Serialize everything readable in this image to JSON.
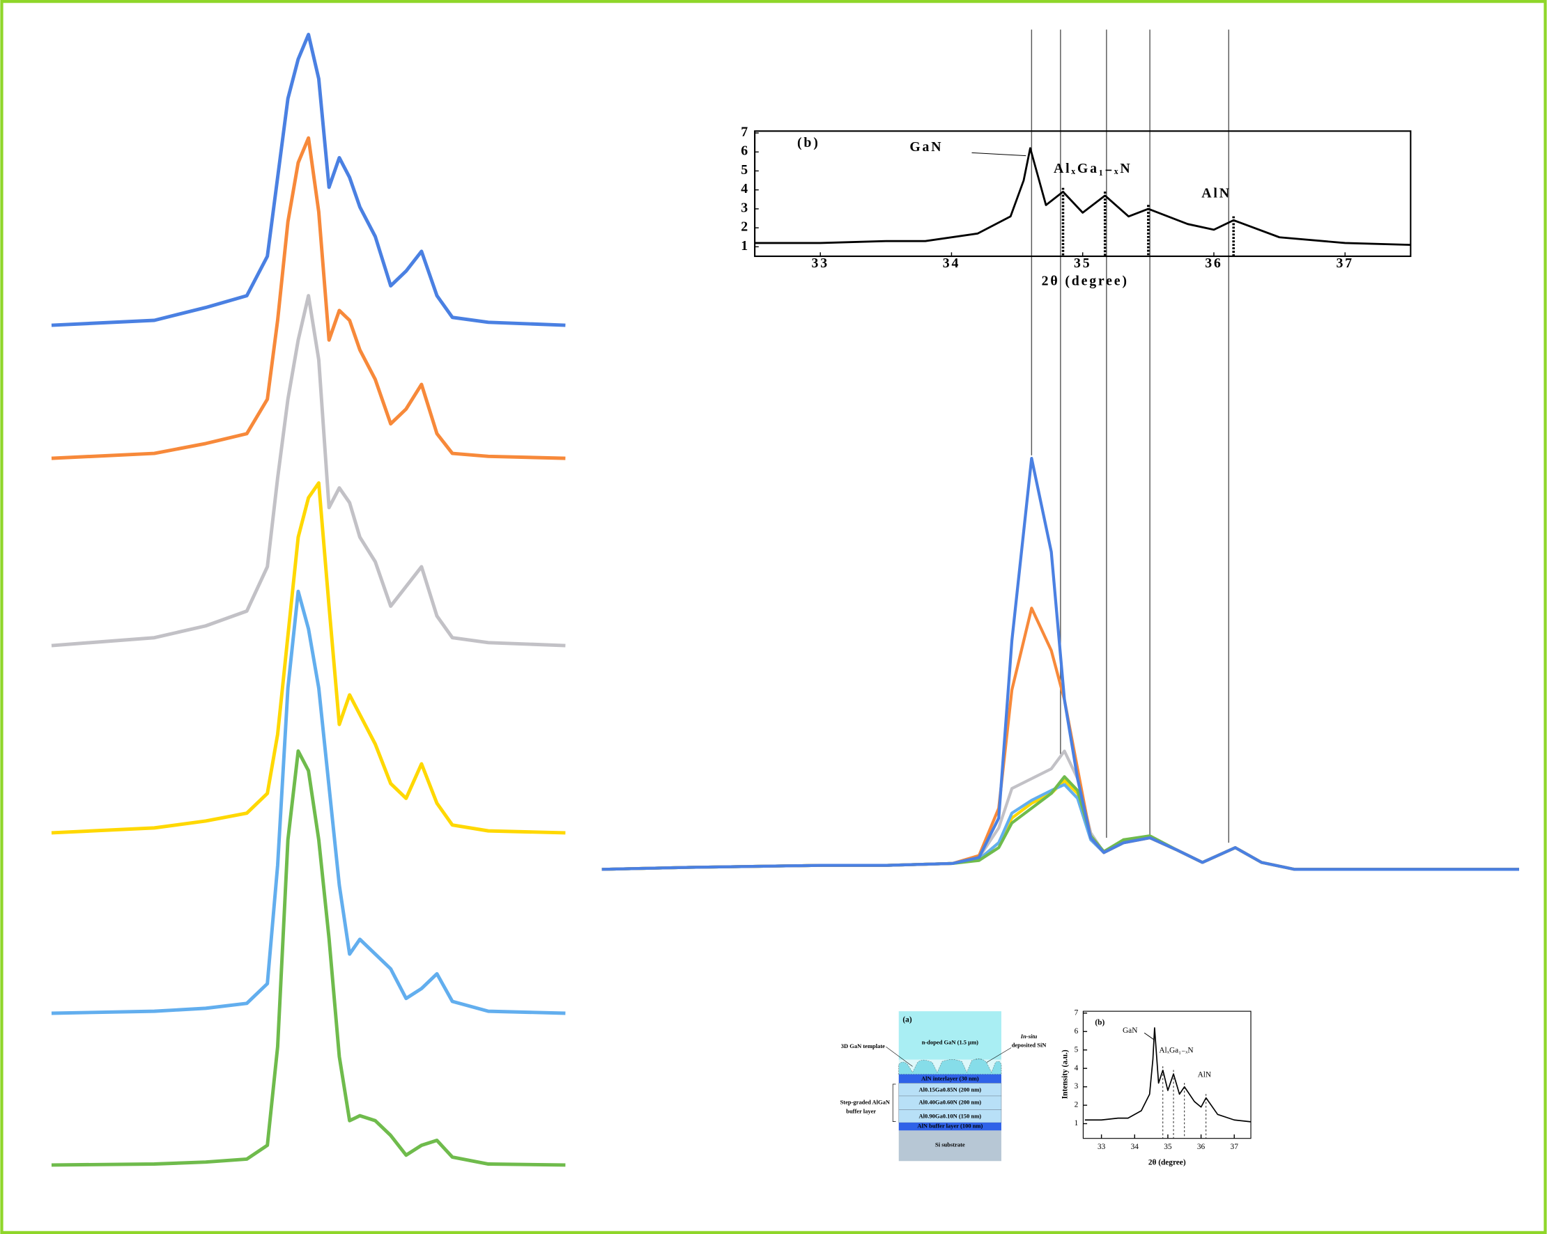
{
  "chart_data": [
    {
      "type": "line",
      "x": [
        0,
        20,
        30,
        38,
        42,
        44,
        46,
        48,
        50,
        52,
        54,
        56,
        58,
        60,
        63,
        66,
        69,
        72,
        75,
        78,
        85,
        100
      ],
      "xlim": [
        0,
        100
      ],
      "ylim": [
        0,
        450
      ],
      "series": [
        {
          "color": "#4a80e2",
          "values": [
            0,
            5,
            18,
            30,
            70,
            150,
            230,
            270,
            295,
            250,
            140,
            170,
            150,
            120,
            90,
            40,
            55,
            75,
            30,
            8,
            3,
            0
          ]
        },
        {
          "color": "#f7893a",
          "values": [
            0,
            5,
            15,
            25,
            60,
            140,
            240,
            300,
            325,
            250,
            120,
            150,
            140,
            110,
            80,
            35,
            50,
            75,
            25,
            5,
            2,
            0
          ]
        },
        {
          "color": "#c2c1c6",
          "values": [
            0,
            8,
            20,
            35,
            80,
            170,
            250,
            310,
            355,
            290,
            140,
            160,
            145,
            110,
            85,
            40,
            60,
            80,
            30,
            8,
            3,
            0
          ]
        },
        {
          "color": "#ffd800",
          "values": [
            0,
            5,
            12,
            20,
            40,
            100,
            200,
            300,
            340,
            355,
            230,
            110,
            140,
            120,
            90,
            50,
            35,
            70,
            30,
            8,
            2,
            0
          ]
        },
        {
          "color": "#62aeee",
          "values": [
            0,
            2,
            5,
            10,
            30,
            150,
            330,
            428,
            390,
            330,
            230,
            130,
            60,
            75,
            60,
            45,
            15,
            25,
            40,
            12,
            2,
            0
          ]
        },
        {
          "color": "#6fbb4c",
          "values": [
            0,
            1,
            3,
            6,
            20,
            120,
            330,
            420,
            400,
            330,
            230,
            110,
            45,
            50,
            45,
            30,
            10,
            20,
            25,
            8,
            1,
            0
          ]
        }
      ]
    },
    {
      "type": "line",
      "x": [
        31.33,
        32,
        33,
        33.5,
        34,
        34.2,
        34.35,
        34.45,
        34.6,
        34.75,
        34.85,
        34.95,
        35.05,
        35.15,
        35.3,
        35.5,
        35.7,
        35.9,
        36.15,
        36.35,
        36.6,
        37,
        38.31
      ],
      "xlim": [
        31.33,
        38.31
      ],
      "ylim": [
        0,
        450
      ],
      "reference_lines": [
        34.6,
        34.82,
        35.17,
        35.5,
        36.1
      ],
      "series": [
        {
          "color": "#c2c1c6",
          "values": [
            18,
            20,
            22,
            22,
            24,
            30,
            60,
            100,
            110,
            120,
            138,
            110,
            55,
            35,
            45,
            50,
            38,
            25,
            40,
            25,
            18,
            18,
            18
          ]
        },
        {
          "color": "#ffd800",
          "values": [
            18,
            20,
            22,
            22,
            24,
            28,
            45,
            70,
            85,
            95,
            108,
            95,
            50,
            35,
            48,
            50,
            38,
            25,
            40,
            25,
            18,
            18,
            18
          ]
        },
        {
          "color": "#62aeee",
          "values": [
            18,
            20,
            22,
            22,
            24,
            28,
            45,
            75,
            88,
            98,
            104,
            90,
            48,
            35,
            45,
            50,
            38,
            25,
            40,
            25,
            18,
            18,
            18
          ]
        },
        {
          "color": "#6fbb4c",
          "values": [
            18,
            20,
            22,
            22,
            24,
            27,
            40,
            65,
            80,
            95,
            112,
            98,
            52,
            36,
            48,
            52,
            38,
            25,
            40,
            25,
            18,
            18,
            18
          ]
        },
        {
          "color": "#f7893a",
          "values": [
            18,
            20,
            22,
            22,
            24,
            32,
            80,
            200,
            283,
            240,
            190,
            120,
            50,
            35,
            45,
            50,
            38,
            25,
            40,
            25,
            18,
            18,
            18
          ]
        },
        {
          "color": "#4a80e2",
          "values": [
            18,
            20,
            22,
            22,
            24,
            30,
            70,
            250,
            435,
            340,
            190,
            110,
            50,
            35,
            45,
            50,
            38,
            25,
            40,
            25,
            18,
            18,
            18
          ]
        }
      ]
    },
    {
      "type": "line",
      "panel_label": "(b)",
      "x": [
        32.5,
        33,
        33.5,
        33.8,
        34.2,
        34.45,
        34.55,
        34.6,
        34.72,
        34.85,
        35,
        35.17,
        35.35,
        35.5,
        35.8,
        36,
        36.15,
        36.5,
        37,
        37.5
      ],
      "values": [
        1.2,
        1.2,
        1.3,
        1.3,
        1.7,
        2.6,
        4.5,
        6.2,
        3.2,
        3.9,
        2.8,
        3.7,
        2.6,
        3.0,
        2.2,
        1.9,
        2.4,
        1.5,
        1.2,
        1.1
      ],
      "color": "#000000",
      "xlim": [
        32.5,
        37.5
      ],
      "ylim": [
        0.5,
        7.1
      ],
      "xticks": [
        33,
        34,
        35,
        36,
        37
      ],
      "yticks": [
        1,
        2,
        3,
        4,
        5,
        6,
        7
      ],
      "xlabel": "2θ (degree)",
      "annotations": [
        "GaN",
        "AlₓGa₁₋ₓN",
        "AlN"
      ],
      "marker_lines": [
        34.85,
        35.17,
        35.5,
        36.15
      ]
    },
    {
      "type": "line",
      "panel_label": "(b)",
      "x": [
        32.5,
        33,
        33.5,
        33.8,
        34.2,
        34.45,
        34.55,
        34.6,
        34.72,
        34.85,
        35,
        35.17,
        35.35,
        35.5,
        35.8,
        36,
        36.15,
        36.5,
        37,
        37.5
      ],
      "values": [
        1.2,
        1.2,
        1.3,
        1.3,
        1.7,
        2.6,
        4.5,
        6.2,
        3.2,
        3.9,
        2.8,
        3.7,
        2.6,
        3.0,
        2.2,
        1.9,
        2.4,
        1.5,
        1.2,
        1.1
      ],
      "color": "#000000",
      "xlim": [
        32.45,
        37.5
      ],
      "ylim": [
        0.2,
        7.1
      ],
      "xticks": [
        33,
        34,
        35,
        36,
        37
      ],
      "yticks": [
        1,
        2,
        3,
        4,
        5,
        6,
        7
      ],
      "xlabel": "2θ (degree)",
      "ylabel": "Intensity (a.u.)",
      "annotations": [
        "GaN",
        "AlₓGa₁₋ₓN",
        "AlN"
      ],
      "marker_lines": [
        34.85,
        35.17,
        35.5,
        36.15
      ]
    }
  ],
  "schematic": {
    "label": "(a)",
    "layers": [
      "n-doped GaN (1.5 µm)",
      "AlN interlayer (30 nm)",
      "Al0.15Ga0.85N (200 nm)",
      "Al0.40Ga0.60N (200 nm)",
      "Al0.90Ga0.10N (150 nm)",
      "AlN buffer layer (100 nm)",
      "Si substrate"
    ],
    "notes": [
      "3D GaN template",
      "In-situ",
      "deposited SiN",
      "Step-graded AlGaN",
      "buffer layer"
    ]
  }
}
